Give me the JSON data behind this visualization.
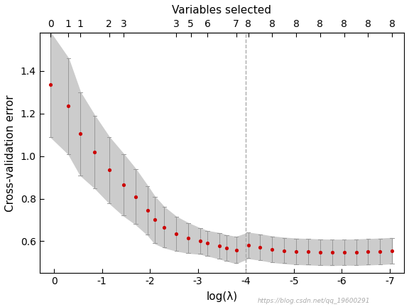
{
  "title_top": "Variables selected",
  "xlabel": "log(λ)",
  "ylabel": "Cross-validation error",
  "xlim": [
    0.3,
    -7.3
  ],
  "ylim": [
    0.45,
    1.58
  ],
  "xticks": [
    0,
    -1,
    -2,
    -3,
    -4,
    -5,
    -6,
    -7
  ],
  "yticks": [
    0.6,
    0.8,
    1.0,
    1.2,
    1.4
  ],
  "vline_x": -4.0,
  "vline_color": "#aaaaaa",
  "dot_color": "#cc0000",
  "error_band_color": "#cccccc",
  "error_bar_color": "#999999",
  "watermark": "https://blog.csdn.net/qq_19600291",
  "top_ticks_x": [
    0.07,
    -0.3,
    -0.55,
    -1.15,
    -1.45,
    -2.55,
    -2.85,
    -3.2,
    -3.8,
    -4.05,
    -4.55,
    -5.05,
    -5.55,
    -6.05,
    -6.55,
    -7.05
  ],
  "top_ticks_labels": [
    "0",
    "1",
    "1",
    "2",
    "3",
    "3",
    "5",
    "6",
    "7",
    "8",
    "8",
    "8",
    "8",
    "8",
    "8",
    "8"
  ],
  "log_lambda": [
    0.07,
    -0.3,
    -0.55,
    -0.85,
    -1.15,
    -1.45,
    -1.7,
    -1.95,
    -2.1,
    -2.3,
    -2.55,
    -2.8,
    -3.05,
    -3.2,
    -3.45,
    -3.6,
    -3.8,
    -4.05,
    -4.3,
    -4.55,
    -4.8,
    -5.05,
    -5.3,
    -5.55,
    -5.8,
    -6.05,
    -6.3,
    -6.55,
    -6.8,
    -7.05
  ],
  "cv_mean": [
    1.335,
    1.235,
    1.105,
    1.02,
    0.935,
    0.865,
    0.81,
    0.745,
    0.7,
    0.665,
    0.635,
    0.615,
    0.6,
    0.59,
    0.578,
    0.568,
    0.558,
    0.58,
    0.572,
    0.562,
    0.556,
    0.552,
    0.55,
    0.548,
    0.547,
    0.548,
    0.548,
    0.55,
    0.552,
    0.555
  ],
  "cv_upper": [
    1.58,
    1.46,
    1.3,
    1.19,
    1.09,
    1.01,
    0.94,
    0.86,
    0.81,
    0.76,
    0.715,
    0.685,
    0.66,
    0.648,
    0.638,
    0.628,
    0.62,
    0.64,
    0.632,
    0.622,
    0.616,
    0.612,
    0.61,
    0.608,
    0.607,
    0.607,
    0.608,
    0.61,
    0.612,
    0.615
  ],
  "cv_lower": [
    1.09,
    1.01,
    0.91,
    0.85,
    0.78,
    0.72,
    0.68,
    0.63,
    0.59,
    0.57,
    0.555,
    0.545,
    0.54,
    0.532,
    0.518,
    0.508,
    0.496,
    0.52,
    0.512,
    0.502,
    0.496,
    0.492,
    0.49,
    0.488,
    0.487,
    0.489,
    0.488,
    0.49,
    0.492,
    0.495
  ],
  "figsize": [
    5.76,
    4.32
  ],
  "dpi": 100
}
